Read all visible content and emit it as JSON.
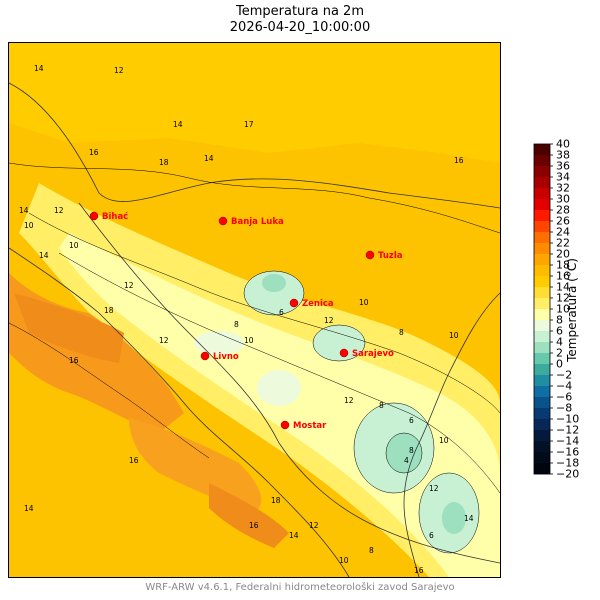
{
  "title": "Temperatura na 2m",
  "subtitle": "2026-04-20_10:00:00",
  "footer": "WRF-ARW v4.6.1, Federalni hidrometeorološki zavod Sarajevo",
  "colorbar": {
    "label": "Temperatura (°C)",
    "min": -20,
    "max": 40,
    "step": 2,
    "ticks": [
      "40",
      "38",
      "36",
      "34",
      "32",
      "30",
      "28",
      "26",
      "24",
      "22",
      "20",
      "18",
      "16",
      "14",
      "12",
      "10",
      "8",
      "6",
      "4",
      "2",
      "0",
      "−2",
      "−4",
      "−6",
      "−8",
      "−10",
      "−12",
      "−14",
      "−16",
      "−18",
      "−20"
    ],
    "colors": [
      "#4b0000",
      "#6b0000",
      "#8b0000",
      "#a80000",
      "#c80000",
      "#e40000",
      "#ff1a00",
      "#ff4500",
      "#ff6f00",
      "#ff8c00",
      "#ffa500",
      "#ffbb00",
      "#ffcc00",
      "#ffdd33",
      "#ffee66",
      "#ffffaa",
      "#eefadc",
      "#c8f0d2",
      "#9ce0bf",
      "#66c9ac",
      "#3daa9c",
      "#1f8ea3",
      "#0f6fa3",
      "#0a528c",
      "#083a72",
      "#062757",
      "#041a3d",
      "#031128",
      "#020b1a",
      "#010510"
    ]
  },
  "cities": [
    {
      "name": "Bihać"
    },
    {
      "name": "Banja Luka"
    },
    {
      "name": "Tuzla"
    },
    {
      "name": "Zenica"
    },
    {
      "name": "Sarajevo"
    },
    {
      "name": "Livno"
    },
    {
      "name": "Mostar"
    }
  ],
  "contour_labels": [
    "14",
    "12",
    "14",
    "17",
    "16",
    "14",
    "18",
    "16",
    "12",
    "10",
    "14",
    "12",
    "10",
    "14",
    "18",
    "16",
    "12",
    "10",
    "8",
    "6",
    "12",
    "10",
    "8",
    "10",
    "12",
    "8",
    "6",
    "4",
    "8",
    "10",
    "12",
    "14",
    "16",
    "18",
    "16",
    "14",
    "12",
    "10",
    "8",
    "6",
    "16",
    "14"
  ]
}
